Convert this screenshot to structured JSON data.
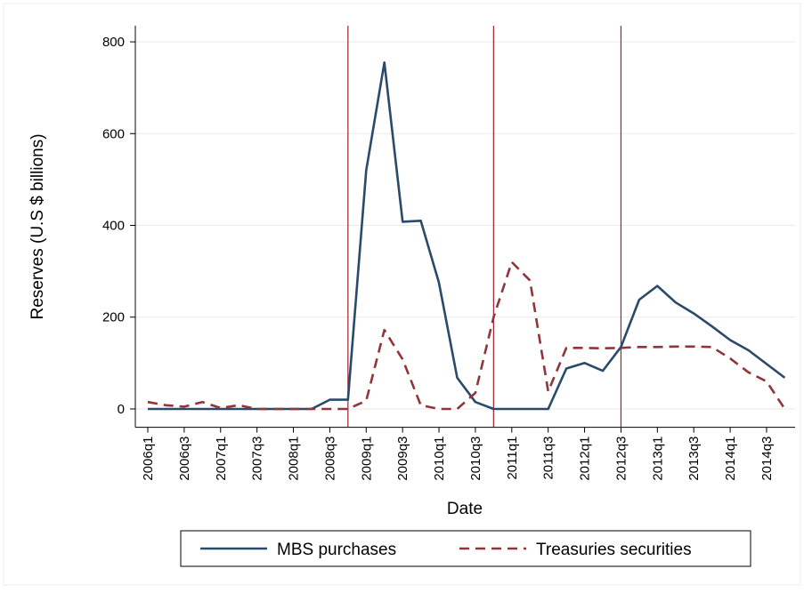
{
  "chart_data": {
    "type": "line",
    "x_label": "Date",
    "y_label": "Reserves (U.S  $ billions)",
    "categories": [
      "2006q1",
      null,
      "2006q3",
      null,
      "2007q1",
      null,
      "2007q3",
      null,
      "2008q1",
      null,
      "2008q3",
      null,
      "2009q1",
      null,
      "2009q3",
      null,
      "2010q1",
      null,
      "2010q3",
      null,
      "2011q1",
      null,
      "2011q3",
      null,
      "2012q1",
      null,
      "2012q3",
      null,
      "2013q1",
      null,
      "2013q3",
      null,
      "2014q1",
      null,
      "2014q3",
      null
    ],
    "series": [
      {
        "name": "MBS purchases",
        "color": "#2a4a6b",
        "dash": false,
        "values": [
          0,
          0,
          0,
          0,
          0,
          0,
          0,
          0,
          0,
          0,
          20,
          20,
          520,
          755,
          408,
          410,
          275,
          68,
          15,
          0,
          0,
          0,
          0,
          88,
          100,
          83,
          135,
          238,
          268,
          232,
          208,
          180,
          150,
          128,
          98,
          68
        ]
      },
      {
        "name": "Treasuries securities",
        "color": "#90353b",
        "dash": true,
        "values": [
          15,
          8,
          5,
          15,
          2,
          8,
          0,
          0,
          0,
          0,
          0,
          0,
          18,
          172,
          108,
          8,
          0,
          0,
          35,
          200,
          320,
          280,
          38,
          133,
          133,
          132,
          133,
          135,
          135,
          136,
          136,
          135,
          110,
          80,
          60,
          0
        ]
      }
    ],
    "vlines": [
      11,
      19,
      26
    ],
    "vline_color": "#a3202c",
    "ylim": [
      -40,
      835
    ],
    "yticks": [
      0,
      200,
      400,
      600,
      800
    ],
    "grid": true,
    "legend": "bottom"
  }
}
